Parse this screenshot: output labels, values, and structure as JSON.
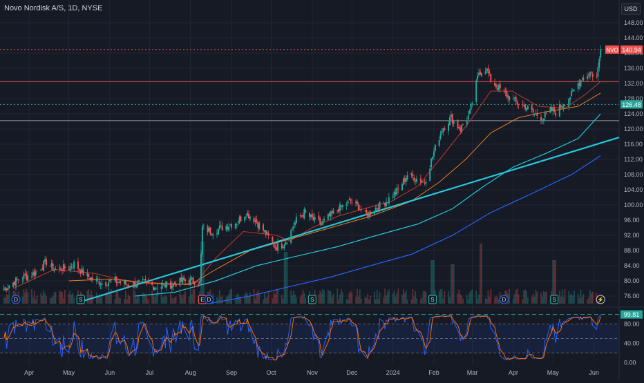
{
  "header": {
    "title": "Novo Nordisk A/S, 1D, NYSE",
    "currency": "USD"
  },
  "price_labels": {
    "symbol": "NVO",
    "last": "140.94",
    "dotted": "126.48",
    "stoch": "99.81"
  },
  "colors": {
    "background": "#161a25",
    "up": "#26a69a",
    "down": "#ef5350",
    "ma_fast": "#c0392b",
    "ma_mid": "#e67e22",
    "ma_slow": "#26c6da",
    "ma_long": "#2962ff",
    "trend": "#26c6da",
    "stoch_k": "#2962ff",
    "stoch_d": "#ff6d00",
    "grid": "#232632"
  },
  "events": [
    {
      "name": "dividend-icon",
      "label": "D",
      "x": "2023-03-22"
    },
    {
      "name": "split-icon",
      "label": "S",
      "x": "2023-05-10"
    },
    {
      "name": "earnings-icon",
      "label": "E",
      "x": "2023-08-10"
    },
    {
      "name": "dividend-icon",
      "label": "D",
      "x": "2023-08-15"
    },
    {
      "name": "split-icon",
      "label": "S",
      "x": "2023-11-01"
    },
    {
      "name": "split-icon",
      "label": "S",
      "x": "2024-01-31"
    },
    {
      "name": "dividend-icon",
      "label": "D",
      "x": "2024-03-25"
    },
    {
      "name": "split-icon",
      "label": "S",
      "x": "2024-05-02"
    },
    {
      "name": "flash-icon",
      "label": "⚡",
      "x": "2024-06-06"
    }
  ],
  "chart_data": {
    "type": "candlestick",
    "title": "Novo Nordisk A/S, 1D, NYSE",
    "xlabel": "",
    "ylabel": "USD",
    "x_range": [
      "2023-03-10",
      "2024-06-20"
    ],
    "ylim": [
      74,
      150
    ],
    "y_ticks": [
      76,
      80,
      84,
      88,
      92,
      96,
      100,
      104,
      108,
      112,
      116,
      120,
      124,
      128,
      132,
      136,
      140,
      144,
      148
    ],
    "x_ticks": [
      {
        "label": "Apr",
        "x": "2023-04-01"
      },
      {
        "label": "May",
        "x": "2023-05-01"
      },
      {
        "label": "Jun",
        "x": "2023-06-01"
      },
      {
        "label": "Jul",
        "x": "2023-07-01"
      },
      {
        "label": "Aug",
        "x": "2023-08-01"
      },
      {
        "label": "Sep",
        "x": "2023-09-01"
      },
      {
        "label": "Oct",
        "x": "2023-10-01"
      },
      {
        "label": "Nov",
        "x": "2023-11-01"
      },
      {
        "label": "Dec",
        "x": "2023-12-01"
      },
      {
        "label": "2024",
        "x": "2024-01-01"
      },
      {
        "label": "Feb",
        "x": "2024-02-01"
      },
      {
        "label": "Mar",
        "x": "2024-03-01"
      },
      {
        "label": "Apr",
        "x": "2024-04-01"
      },
      {
        "label": "May",
        "x": "2024-05-01"
      },
      {
        "label": "Jun",
        "x": "2024-06-01"
      }
    ],
    "horizontal_levels": [
      {
        "value": 140.94,
        "color": "#ef5350",
        "style": "dotted"
      },
      {
        "value": 132.5,
        "color": "#ef5350",
        "style": "solid"
      },
      {
        "value": 126.48,
        "color": "#26a69a",
        "style": "dotted"
      },
      {
        "value": 122.2,
        "color": "#9598a1",
        "style": "solid"
      }
    ],
    "trendline": {
      "from": {
        "x": "2023-05-10",
        "y": 74.5
      },
      "to": {
        "x": "2024-06-20",
        "y": 117.8
      }
    },
    "close_anchors": [
      [
        "2023-03-13",
        78
      ],
      [
        "2023-03-24",
        80.5
      ],
      [
        "2023-04-05",
        82
      ],
      [
        "2023-04-14",
        85
      ],
      [
        "2023-04-20",
        83
      ],
      [
        "2023-05-01",
        83.5
      ],
      [
        "2023-05-05",
        84.5
      ],
      [
        "2023-05-12",
        82
      ],
      [
        "2023-05-19",
        80.5
      ],
      [
        "2023-05-26",
        79.5
      ],
      [
        "2023-06-05",
        80
      ],
      [
        "2023-06-15",
        79
      ],
      [
        "2023-06-26",
        79.5
      ],
      [
        "2023-07-06",
        78.5
      ],
      [
        "2023-07-17",
        79
      ],
      [
        "2023-07-27",
        80
      ],
      [
        "2023-08-04",
        80
      ],
      [
        "2023-08-08",
        79.5
      ],
      [
        "2023-08-10",
        94
      ],
      [
        "2023-08-17",
        93
      ],
      [
        "2023-08-28",
        94.5
      ],
      [
        "2023-09-05",
        95.5
      ],
      [
        "2023-09-12",
        98
      ],
      [
        "2023-09-19",
        96
      ],
      [
        "2023-09-28",
        92
      ],
      [
        "2023-10-04",
        89
      ],
      [
        "2023-10-09",
        89.5
      ],
      [
        "2023-10-13",
        91
      ],
      [
        "2023-10-20",
        96
      ],
      [
        "2023-10-26",
        98
      ],
      [
        "2023-11-02",
        96
      ],
      [
        "2023-11-08",
        95
      ],
      [
        "2023-11-14",
        97
      ],
      [
        "2023-11-21",
        99
      ],
      [
        "2023-11-30",
        101
      ],
      [
        "2023-12-06",
        99.5
      ],
      [
        "2023-12-12",
        97
      ],
      [
        "2023-12-18",
        99
      ],
      [
        "2023-12-27",
        101
      ],
      [
        "2024-01-05",
        104
      ],
      [
        "2024-01-12",
        108
      ],
      [
        "2024-01-19",
        107
      ],
      [
        "2024-01-25",
        106
      ],
      [
        "2024-02-01",
        114
      ],
      [
        "2024-02-07",
        120
      ],
      [
        "2024-02-14",
        123
      ],
      [
        "2024-02-21",
        120
      ],
      [
        "2024-02-28",
        124
      ],
      [
        "2024-03-06",
        135
      ],
      [
        "2024-03-11",
        136
      ],
      [
        "2024-03-15",
        133
      ],
      [
        "2024-03-20",
        131
      ],
      [
        "2024-03-27",
        129
      ],
      [
        "2024-04-03",
        127
      ],
      [
        "2024-04-10",
        126
      ],
      [
        "2024-04-17",
        124
      ],
      [
        "2024-04-24",
        123
      ],
      [
        "2024-04-30",
        125
      ],
      [
        "2024-05-03",
        124.5
      ],
      [
        "2024-05-08",
        126.5
      ],
      [
        "2024-05-15",
        129
      ],
      [
        "2024-05-22",
        133
      ],
      [
        "2024-05-29",
        135
      ],
      [
        "2024-06-03",
        133.5
      ],
      [
        "2024-06-06",
        140.94
      ]
    ],
    "moving_averages": [
      {
        "key": "ma_fast",
        "points": [
          [
            "2023-03-20",
            78
          ],
          [
            "2023-04-20",
            83
          ],
          [
            "2023-05-20",
            82
          ],
          [
            "2023-06-20",
            79.5
          ],
          [
            "2023-07-20",
            79
          ],
          [
            "2023-08-05",
            79.5
          ],
          [
            "2023-08-20",
            86
          ],
          [
            "2023-09-10",
            93
          ],
          [
            "2023-10-05",
            92
          ],
          [
            "2023-10-15",
            90.5
          ],
          [
            "2023-11-01",
            94
          ],
          [
            "2023-11-20",
            97
          ],
          [
            "2023-12-10",
            99
          ],
          [
            "2023-12-31",
            101
          ],
          [
            "2024-01-20",
            105
          ],
          [
            "2024-02-10",
            114
          ],
          [
            "2024-02-28",
            122
          ],
          [
            "2024-03-15",
            130
          ],
          [
            "2024-03-31",
            130
          ],
          [
            "2024-04-20",
            126
          ],
          [
            "2024-05-10",
            125.5
          ],
          [
            "2024-05-25",
            129
          ],
          [
            "2024-06-06",
            132.5
          ]
        ]
      },
      {
        "key": "ma_mid",
        "points": [
          [
            "2023-05-01",
            80
          ],
          [
            "2023-06-01",
            80.5
          ],
          [
            "2023-07-01",
            79.5
          ],
          [
            "2023-08-01",
            79
          ],
          [
            "2023-08-20",
            83
          ],
          [
            "2023-09-15",
            88
          ],
          [
            "2023-10-15",
            91
          ],
          [
            "2023-11-15",
            94
          ],
          [
            "2023-12-15",
            97
          ],
          [
            "2024-01-15",
            101
          ],
          [
            "2024-02-05",
            106
          ],
          [
            "2024-02-25",
            112
          ],
          [
            "2024-03-15",
            119
          ],
          [
            "2024-04-05",
            123
          ],
          [
            "2024-04-25",
            124.5
          ],
          [
            "2024-05-20",
            126
          ],
          [
            "2024-06-06",
            129.5
          ]
        ]
      },
      {
        "key": "ma_slow",
        "points": [
          [
            "2023-06-20",
            76
          ],
          [
            "2023-07-20",
            77
          ],
          [
            "2023-08-20",
            80
          ],
          [
            "2023-09-20",
            84
          ],
          [
            "2023-10-20",
            86.5
          ],
          [
            "2023-11-20",
            89
          ],
          [
            "2023-12-20",
            92
          ],
          [
            "2024-01-20",
            95
          ],
          [
            "2024-02-15",
            99
          ],
          [
            "2024-03-10",
            105
          ],
          [
            "2024-04-01",
            110
          ],
          [
            "2024-04-25",
            113.5
          ],
          [
            "2024-05-20",
            117.5
          ],
          [
            "2024-06-06",
            124
          ]
        ]
      },
      {
        "key": "ma_long",
        "points": [
          [
            "2023-08-15",
            74
          ],
          [
            "2023-09-15",
            76
          ],
          [
            "2023-10-15",
            78.5
          ],
          [
            "2023-11-15",
            81
          ],
          [
            "2023-12-15",
            84
          ],
          [
            "2024-01-15",
            87
          ],
          [
            "2024-02-15",
            92
          ],
          [
            "2024-03-15",
            98
          ],
          [
            "2024-04-15",
            103
          ],
          [
            "2024-05-15",
            108
          ],
          [
            "2024-06-06",
            113
          ]
        ]
      }
    ],
    "volume_spikes": [
      [
        "2023-08-10",
        1.0
      ],
      [
        "2023-10-12",
        0.75
      ],
      [
        "2024-01-31",
        0.55
      ],
      [
        "2024-02-15",
        0.45
      ],
      [
        "2024-03-08",
        0.95
      ],
      [
        "2024-05-02",
        0.55
      ]
    ],
    "stochastic": {
      "ylim": [
        -5,
        105
      ],
      "y_ticks": [
        0,
        40,
        80
      ],
      "bands": [
        20,
        50,
        80
      ],
      "signal_level": 99.81
    }
  }
}
